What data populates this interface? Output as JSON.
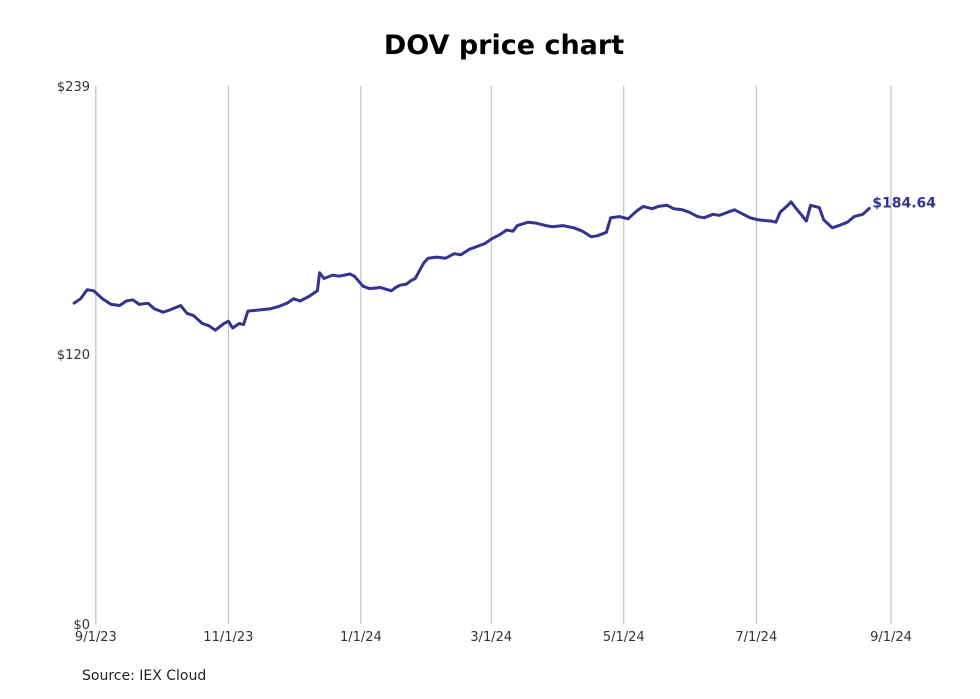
{
  "chart_data": {
    "type": "line",
    "title": "DOV price chart",
    "source": "Source: IEX Cloud",
    "y_ticks": [
      {
        "value": 239,
        "label": "$239"
      },
      {
        "value": 120,
        "label": "$120"
      },
      {
        "value": 0,
        "label": "$0"
      }
    ],
    "x_ticks": [
      "9/1/23",
      "11/1/23",
      "1/1/24",
      "3/1/24",
      "5/1/24",
      "7/1/24",
      "9/1/24"
    ],
    "ylim": [
      0,
      239
    ],
    "grid": "vertical",
    "last_value_label": "$184.64",
    "series": [
      {
        "color": "#35338f",
        "points": [
          [
            "2023-08-22",
            142.5
          ],
          [
            "2023-08-25",
            144.5
          ],
          [
            "2023-08-28",
            148.5
          ],
          [
            "2023-08-31",
            148.0
          ],
          [
            "2023-09-04",
            144.5
          ],
          [
            "2023-09-08",
            142.0
          ],
          [
            "2023-09-12",
            141.5
          ],
          [
            "2023-09-15",
            143.5
          ],
          [
            "2023-09-18",
            144.0
          ],
          [
            "2023-09-21",
            142.0
          ],
          [
            "2023-09-25",
            142.5
          ],
          [
            "2023-09-28",
            140.0
          ],
          [
            "2023-10-02",
            138.5
          ],
          [
            "2023-10-05",
            139.5
          ],
          [
            "2023-10-10",
            141.5
          ],
          [
            "2023-10-13",
            138.0
          ],
          [
            "2023-10-16",
            137.0
          ],
          [
            "2023-10-20",
            133.5
          ],
          [
            "2023-10-23",
            132.5
          ],
          [
            "2023-10-26",
            130.5
          ],
          [
            "2023-10-30",
            133.5
          ],
          [
            "2023-11-01",
            134.5
          ],
          [
            "2023-11-03",
            131.5
          ],
          [
            "2023-11-06",
            133.5
          ],
          [
            "2023-11-08",
            133.0
          ],
          [
            "2023-11-10",
            139.0
          ],
          [
            "2023-11-15",
            139.5
          ],
          [
            "2023-11-20",
            140.0
          ],
          [
            "2023-11-24",
            141.0
          ],
          [
            "2023-11-28",
            142.5
          ],
          [
            "2023-12-01",
            144.5
          ],
          [
            "2023-12-04",
            143.5
          ],
          [
            "2023-12-08",
            145.5
          ],
          [
            "2023-12-12",
            148.0
          ],
          [
            "2023-12-13",
            156.0
          ],
          [
            "2023-12-15",
            153.5
          ],
          [
            "2023-12-19",
            155.0
          ],
          [
            "2023-12-22",
            154.5
          ],
          [
            "2023-12-27",
            155.5
          ],
          [
            "2023-12-29",
            154.5
          ],
          [
            "2024-01-02",
            150.0
          ],
          [
            "2024-01-05",
            149.0
          ],
          [
            "2024-01-10",
            149.5
          ],
          [
            "2024-01-15",
            148.0
          ],
          [
            "2024-01-17",
            149.5
          ],
          [
            "2024-01-19",
            150.5
          ],
          [
            "2024-01-22",
            151.0
          ],
          [
            "2024-01-24",
            152.5
          ],
          [
            "2024-01-26",
            153.5
          ],
          [
            "2024-01-30",
            160.5
          ],
          [
            "2024-02-01",
            162.5
          ],
          [
            "2024-02-05",
            163.0
          ],
          [
            "2024-02-09",
            162.5
          ],
          [
            "2024-02-13",
            164.5
          ],
          [
            "2024-02-16",
            164.0
          ],
          [
            "2024-02-20",
            166.5
          ],
          [
            "2024-02-23",
            167.5
          ],
          [
            "2024-02-27",
            169.0
          ],
          [
            "2024-03-01",
            171.0
          ],
          [
            "2024-03-05",
            173.0
          ],
          [
            "2024-03-08",
            175.0
          ],
          [
            "2024-03-11",
            174.5
          ],
          [
            "2024-03-13",
            177.0
          ],
          [
            "2024-03-18",
            178.5
          ],
          [
            "2024-03-22",
            178.0
          ],
          [
            "2024-03-26",
            177.0
          ],
          [
            "2024-03-29",
            176.5
          ],
          [
            "2024-04-03",
            177.0
          ],
          [
            "2024-04-08",
            176.0
          ],
          [
            "2024-04-12",
            174.5
          ],
          [
            "2024-04-16",
            172.0
          ],
          [
            "2024-04-19",
            172.5
          ],
          [
            "2024-04-23",
            174.0
          ],
          [
            "2024-04-25",
            180.5
          ],
          [
            "2024-04-29",
            181.0
          ],
          [
            "2024-05-03",
            180.0
          ],
          [
            "2024-05-07",
            183.5
          ],
          [
            "2024-05-10",
            185.5
          ],
          [
            "2024-05-14",
            184.5
          ],
          [
            "2024-05-17",
            185.5
          ],
          [
            "2024-05-21",
            186.0
          ],
          [
            "2024-05-24",
            184.5
          ],
          [
            "2024-05-28",
            184.0
          ],
          [
            "2024-05-31",
            183.0
          ],
          [
            "2024-06-04",
            181.0
          ],
          [
            "2024-06-07",
            180.5
          ],
          [
            "2024-06-11",
            182.0
          ],
          [
            "2024-06-14",
            181.5
          ],
          [
            "2024-06-18",
            183.0
          ],
          [
            "2024-06-21",
            184.0
          ],
          [
            "2024-06-25",
            182.0
          ],
          [
            "2024-06-28",
            180.5
          ],
          [
            "2024-07-02",
            179.5
          ],
          [
            "2024-07-08",
            179.0
          ],
          [
            "2024-07-10",
            178.5
          ],
          [
            "2024-07-12",
            183.0
          ],
          [
            "2024-07-15",
            185.5
          ],
          [
            "2024-07-17",
            187.5
          ],
          [
            "2024-07-19",
            185.0
          ],
          [
            "2024-07-22",
            181.5
          ],
          [
            "2024-07-24",
            179.0
          ],
          [
            "2024-07-26",
            186.0
          ],
          [
            "2024-07-30",
            185.0
          ],
          [
            "2024-08-01",
            179.5
          ],
          [
            "2024-08-05",
            176.0
          ],
          [
            "2024-08-08",
            177.0
          ],
          [
            "2024-08-12",
            178.5
          ],
          [
            "2024-08-15",
            181.0
          ],
          [
            "2024-08-19",
            182.0
          ],
          [
            "2024-08-22",
            184.64
          ]
        ]
      }
    ]
  }
}
